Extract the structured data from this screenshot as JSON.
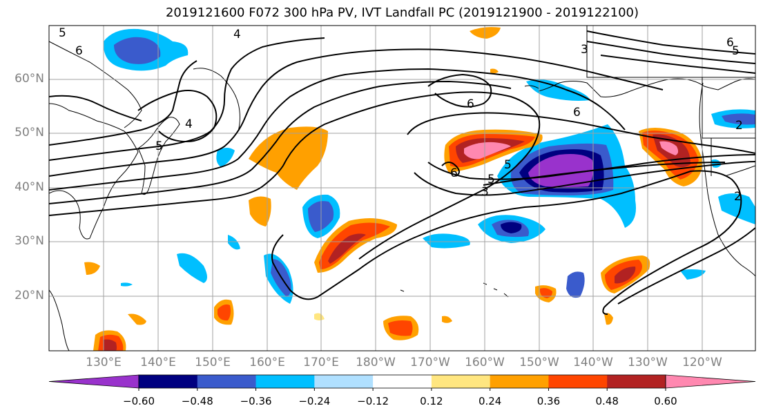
{
  "title": "2019121600 F072 300 hPa PV, IVT Landfall PC (2019121900 - 2019122100)",
  "lat_labels": [
    "60°N",
    "50°N",
    "40°N",
    "30°N",
    "20°N"
  ],
  "lon_labels": [
    "130°E",
    "140°E",
    "150°E",
    "160°E",
    "170°E",
    "180°W",
    "170°W",
    "160°W",
    "150°W",
    "140°W",
    "130°W",
    "120°W"
  ],
  "colorbar": {
    "ticks": [
      "−0.60",
      "−0.48",
      "−0.36",
      "−0.24",
      "−0.12",
      "0.12",
      "0.24",
      "0.36",
      "0.48",
      "0.60"
    ],
    "colors": [
      "#9932cc",
      "#000080",
      "#3a5bcc",
      "#00bfff",
      "#b0e0ff",
      "#ffffff",
      "#ffe680",
      "#ffa000",
      "#ff4500",
      "#b22222",
      "#ff88b0"
    ]
  },
  "contour_labels": [
    "5",
    "4",
    "6",
    "3",
    "6",
    "5",
    "6",
    "6",
    "5",
    "4",
    "3",
    "6",
    "5",
    "5",
    "2",
    "2"
  ],
  "colors": {
    "contour": "#000000",
    "grid": "#a0a0a0",
    "coast": "#000000"
  }
}
